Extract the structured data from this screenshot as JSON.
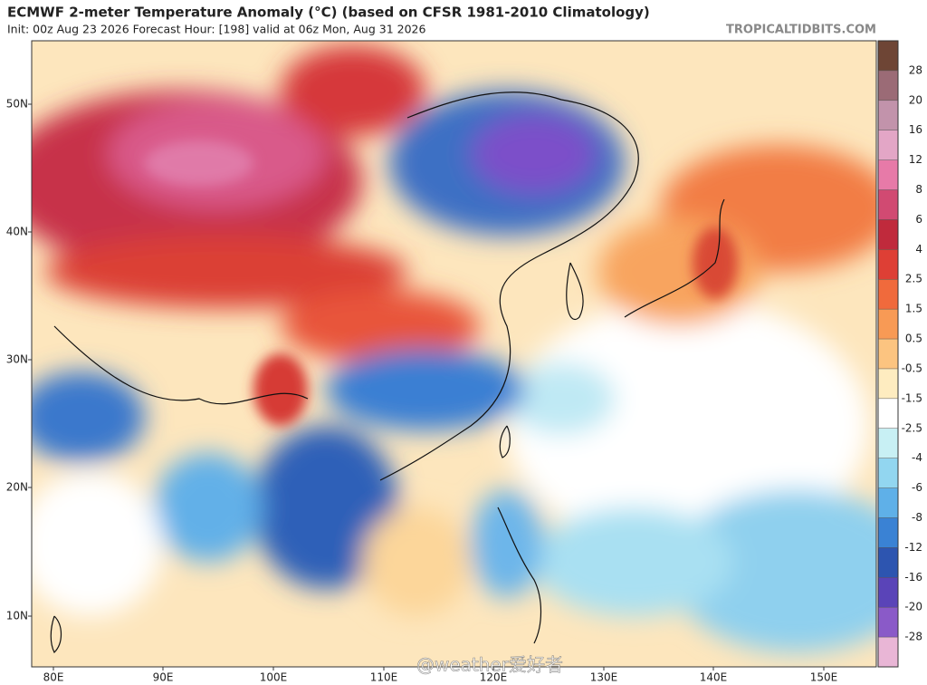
{
  "header": {
    "title": "ECMWF 2-meter Temperature Anomaly (°C) (based on CFSR 1981-2010 Climatology)",
    "subtitle": "Init: 00z Aug 23 2026   Forecast Hour: [198]   valid at 06z Mon, Aug 31 2026",
    "site": "TROPICALTIDBITS.COM"
  },
  "map": {
    "lat_labels": [
      "50N",
      "40N",
      "30N",
      "20N",
      "10N"
    ],
    "lon_labels": [
      "80E",
      "90E",
      "100E",
      "110E",
      "120E",
      "130E",
      "140E",
      "150E"
    ],
    "watermark": "@weather爱好者"
  },
  "colorbar": {
    "levels": [
      28,
      20,
      16,
      12,
      8,
      6,
      4,
      2.5,
      1.5,
      0.5,
      -0.5,
      -1.5,
      -2.5,
      -4,
      -6,
      -8,
      -12,
      -16,
      -20,
      -28
    ],
    "colors": [
      "#6e4535",
      "#9b6b76",
      "#c293ab",
      "#e3a6c6",
      "#e77aa8",
      "#d14a72",
      "#c02a3c",
      "#de3f35",
      "#f06a3c",
      "#f89a55",
      "#fcc480",
      "#feecc0",
      "#ffffff",
      "#c8f0f4",
      "#92d6f0",
      "#5fb0e8",
      "#3a82d4",
      "#2d55b0",
      "#5a44b8",
      "#8a5ac8",
      "#e9b6d6"
    ]
  }
}
